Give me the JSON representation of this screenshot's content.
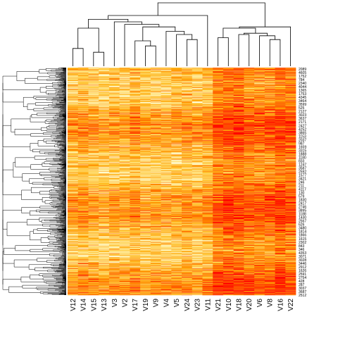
{
  "chart_data": {
    "type": "heatmap",
    "title": "",
    "xlabel": "",
    "ylabel": "",
    "columns": [
      "V12",
      "V14",
      "V15",
      "V13",
      "V3",
      "V2",
      "V17",
      "V19",
      "V9",
      "V4",
      "V5",
      "V24",
      "V23",
      "V11",
      "V21",
      "V10",
      "V18",
      "V20",
      "V6",
      "V8",
      "V16",
      "V22"
    ],
    "row_labels": [
      "2089",
      "4605",
      "1752",
      "784",
      "2340",
      "4044",
      "1365",
      "1753",
      "4345",
      "3464",
      "3599",
      "525",
      "2127",
      "3023",
      "3637",
      "2171",
      "2427",
      "4252",
      "3865",
      "1153",
      "2037",
      "987",
      "1659",
      "3315",
      "1888",
      "1180",
      "833",
      "1247",
      "3587",
      "2592",
      "1577",
      "3421",
      "246",
      "211",
      "4117",
      "130",
      "579",
      "1830",
      "2417",
      "2746",
      "3895",
      "1188",
      "1430",
      "2567",
      "626",
      "3480",
      "1814",
      "1866",
      "1615",
      "2302",
      "843",
      "346",
      "4353",
      "3071",
      "3028",
      "3446",
      "2912",
      "1626",
      "2591",
      "2754",
      "428",
      "287",
      "3037",
      "3687",
      "2512"
    ],
    "n_rows_total": 660,
    "palette": [
      "#ff0000",
      "#ff3800",
      "#ff6a00",
      "#ff9600",
      "#ffba20",
      "#ffd860",
      "#ffeb9e",
      "#ffffe0"
    ],
    "column_dendrogram": {
      "height": 1.0,
      "top_split": {
        "height": 1.0,
        "left_group_size": 14,
        "right_group_size": 8
      },
      "left_group": {
        "height": 0.8
      },
      "right_group": {
        "height": 0.55
      }
    },
    "row_dendrogram": {
      "height": 1.0,
      "side": "left"
    }
  }
}
